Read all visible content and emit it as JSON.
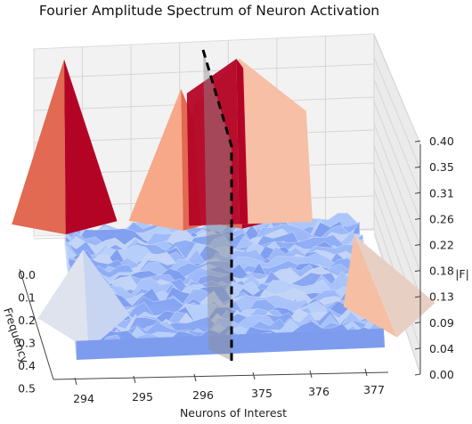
{
  "chart_data": {
    "type": "surface3d",
    "title": "Fourier Amplitude Spectrum of Neuron Activation",
    "xlabel": "Neurons of Interest",
    "ylabel": "Frequency",
    "zlabel": "|F|",
    "x_ticks": [
      "294",
      "295",
      "296",
      "375",
      "376",
      "377"
    ],
    "y_ticks": [
      "0.0",
      "0.1",
      "0.2",
      "0.3",
      "0.4",
      "0.5"
    ],
    "z_ticks": [
      "0.00",
      "0.04",
      "0.09",
      "0.13",
      "0.18",
      "0.22",
      "0.26",
      "0.31",
      "0.35",
      "0.40"
    ],
    "zlim": [
      0,
      0.4
    ],
    "colormap": "coolwarm",
    "peaks": [
      {
        "neuron": "294",
        "frequency": 0.0,
        "amplitude": 0.38
      },
      {
        "neuron": "296",
        "frequency": 0.0,
        "amplitude": 0.31
      },
      {
        "neuron": "375",
        "frequency": 0.0,
        "amplitude": 0.37
      },
      {
        "neuron": "294",
        "frequency": 0.5,
        "amplitude": 0.12
      },
      {
        "neuron": "377",
        "frequency": 0.5,
        "amplitude": 0.13
      }
    ],
    "divider": {
      "between": [
        "296",
        "375"
      ],
      "style": "dashed black line"
    }
  }
}
